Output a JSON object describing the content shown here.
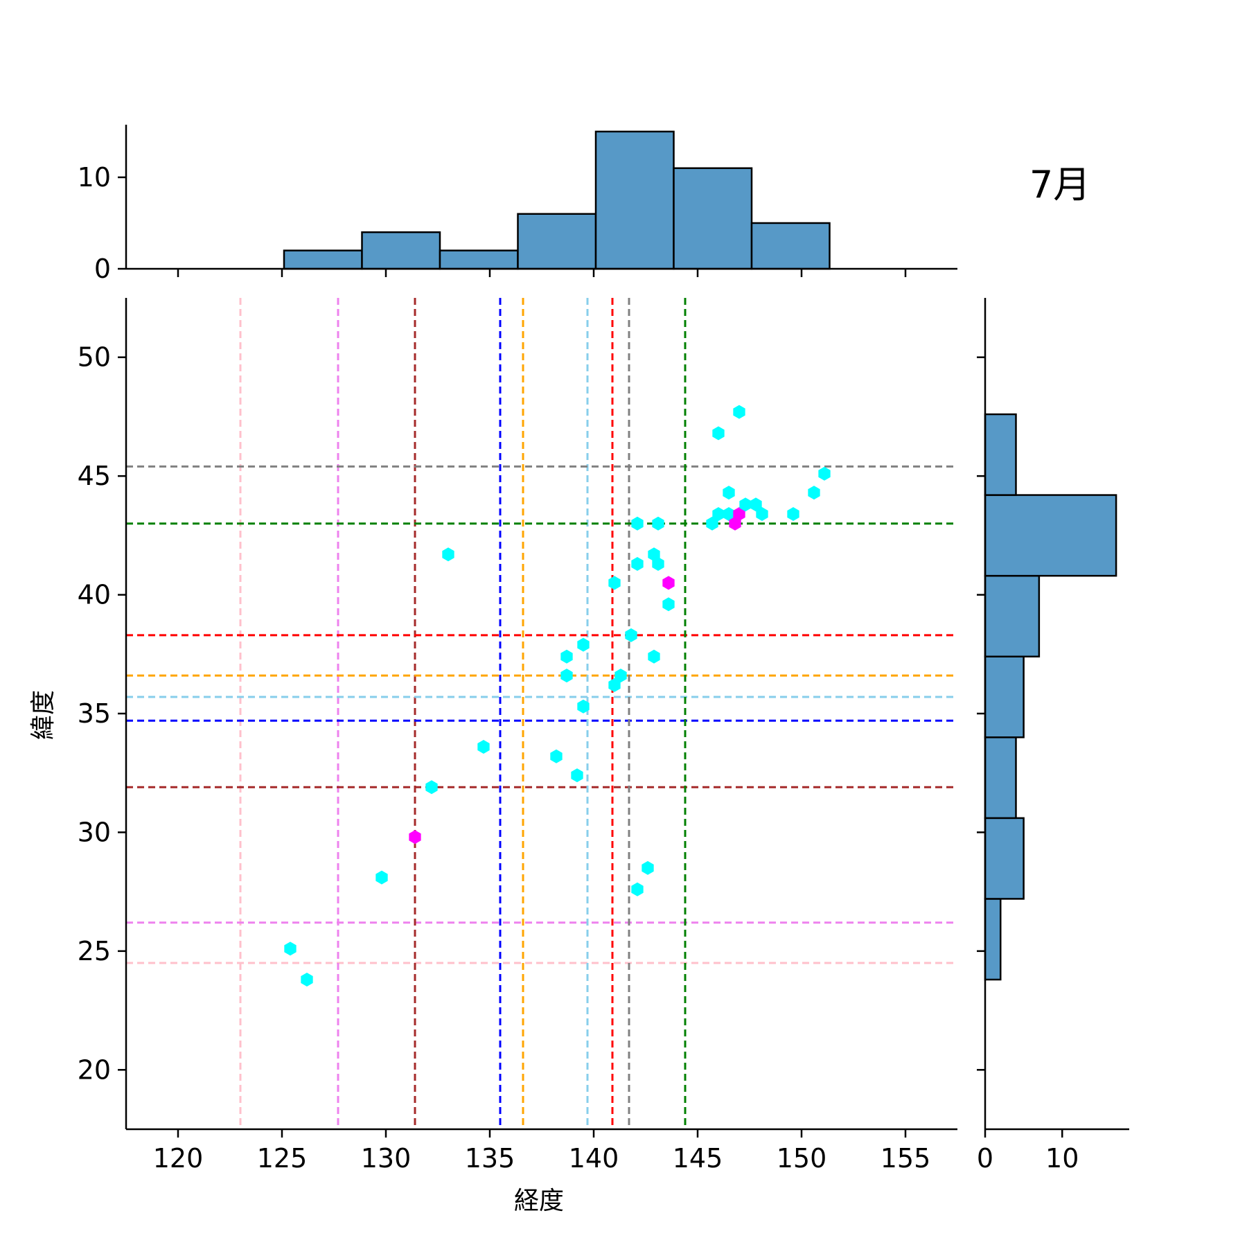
{
  "chart_data": {
    "type": "scatter",
    "title": "7月",
    "xlabel": "経度",
    "ylabel": "緯度",
    "xlim": [
      117.5,
      157.5
    ],
    "ylim": [
      17.5,
      52.5
    ],
    "xticks": [
      120,
      125,
      130,
      135,
      140,
      145,
      150,
      155
    ],
    "yticks": [
      20,
      25,
      30,
      35,
      40,
      45,
      50
    ],
    "grid": false,
    "colors": {
      "points_default": "#00ffff",
      "points_highlight": "#ff00ff",
      "histogram_fill": "#5799c7",
      "histogram_edge": "#000000"
    },
    "reference_lines": [
      {
        "color": "#ffc0cb",
        "lon": 123.0,
        "lat": 24.5
      },
      {
        "color": "#ee82ee",
        "lon": 127.7,
        "lat": 26.2
      },
      {
        "color": "#a52a2a",
        "lon": 131.4,
        "lat": 31.9
      },
      {
        "color": "#0000ff",
        "lon": 135.5,
        "lat": 34.7
      },
      {
        "color": "#ffa500",
        "lon": 136.6,
        "lat": 36.6
      },
      {
        "color": "#87ceeb",
        "lon": 139.7,
        "lat": 35.7
      },
      {
        "color": "#ff0000",
        "lon": 140.9,
        "lat": 38.3
      },
      {
        "color": "#808080",
        "lon": 141.7,
        "lat": 45.4
      },
      {
        "color": "#008000",
        "lon": 144.4,
        "lat": 43.0
      }
    ],
    "points": [
      {
        "x": 125.4,
        "y": 25.1,
        "h": false
      },
      {
        "x": 126.2,
        "y": 23.8,
        "h": false
      },
      {
        "x": 129.8,
        "y": 28.1,
        "h": false
      },
      {
        "x": 131.4,
        "y": 29.8,
        "h": true
      },
      {
        "x": 132.2,
        "y": 31.9,
        "h": false
      },
      {
        "x": 133.0,
        "y": 41.7,
        "h": false
      },
      {
        "x": 134.7,
        "y": 33.6,
        "h": false
      },
      {
        "x": 138.2,
        "y": 33.2,
        "h": false
      },
      {
        "x": 138.7,
        "y": 37.4,
        "h": false
      },
      {
        "x": 138.7,
        "y": 36.6,
        "h": false
      },
      {
        "x": 139.2,
        "y": 32.4,
        "h": false
      },
      {
        "x": 139.5,
        "y": 37.9,
        "h": false
      },
      {
        "x": 139.5,
        "y": 35.3,
        "h": false
      },
      {
        "x": 141.0,
        "y": 40.5,
        "h": false
      },
      {
        "x": 141.0,
        "y": 36.2,
        "h": false
      },
      {
        "x": 141.3,
        "y": 36.6,
        "h": false
      },
      {
        "x": 141.8,
        "y": 38.3,
        "h": false
      },
      {
        "x": 142.1,
        "y": 43.0,
        "h": false
      },
      {
        "x": 142.1,
        "y": 41.3,
        "h": false
      },
      {
        "x": 142.1,
        "y": 27.6,
        "h": false
      },
      {
        "x": 142.6,
        "y": 28.5,
        "h": false
      },
      {
        "x": 142.9,
        "y": 41.7,
        "h": false
      },
      {
        "x": 142.9,
        "y": 37.4,
        "h": false
      },
      {
        "x": 143.1,
        "y": 43.0,
        "h": false
      },
      {
        "x": 143.1,
        "y": 41.3,
        "h": false
      },
      {
        "x": 143.6,
        "y": 40.5,
        "h": true
      },
      {
        "x": 143.6,
        "y": 39.6,
        "h": false
      },
      {
        "x": 145.7,
        "y": 43.0,
        "h": false
      },
      {
        "x": 146.0,
        "y": 46.8,
        "h": false
      },
      {
        "x": 146.0,
        "y": 43.4,
        "h": false
      },
      {
        "x": 146.5,
        "y": 44.3,
        "h": false
      },
      {
        "x": 146.5,
        "y": 43.4,
        "h": false
      },
      {
        "x": 146.8,
        "y": 43.0,
        "h": true
      },
      {
        "x": 147.0,
        "y": 47.7,
        "h": false
      },
      {
        "x": 147.0,
        "y": 43.4,
        "h": true
      },
      {
        "x": 147.3,
        "y": 43.8,
        "h": false
      },
      {
        "x": 147.8,
        "y": 43.8,
        "h": false
      },
      {
        "x": 148.1,
        "y": 43.4,
        "h": false
      },
      {
        "x": 149.6,
        "y": 43.4,
        "h": false
      },
      {
        "x": 150.6,
        "y": 44.3,
        "h": false
      },
      {
        "x": 151.1,
        "y": 45.1,
        "h": false
      }
    ],
    "x_hist": {
      "edges": [
        125.1,
        128.85,
        132.6,
        136.35,
        140.1,
        143.85,
        147.6,
        151.35
      ],
      "counts": [
        2,
        4,
        2,
        6,
        15,
        11,
        5
      ],
      "ylim": [
        0,
        15.75
      ],
      "yticks": [
        0,
        10
      ]
    },
    "y_hist": {
      "edges": [
        23.8,
        27.2,
        30.6,
        34.0,
        37.4,
        40.8,
        44.2,
        47.6
      ],
      "counts": [
        2,
        5,
        4,
        5,
        7,
        17,
        4
      ],
      "xlim": [
        0,
        18.7
      ],
      "xticks": [
        0,
        10
      ]
    }
  }
}
